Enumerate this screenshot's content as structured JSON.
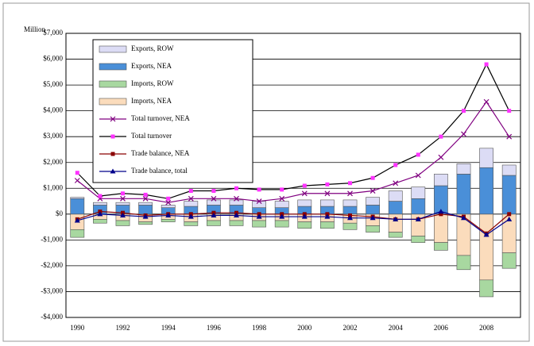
{
  "chart_data": {
    "type": "bar",
    "y_axis_label": "Million",
    "categories": [
      "1990",
      null,
      "1992",
      null,
      "1994",
      null,
      "1996",
      null,
      "1998",
      null,
      "2000",
      null,
      "2002",
      null,
      "2004",
      null,
      "2006",
      null,
      "2008",
      null
    ],
    "ylim": [
      -4000,
      7000
    ],
    "yticks": [
      {
        "value": -4000,
        "label": "-$4,000"
      },
      {
        "value": -3000,
        "label": "-$3,000"
      },
      {
        "value": -2000,
        "label": "-$2,000"
      },
      {
        "value": -1000,
        "label": "-$1,000"
      },
      {
        "value": 0,
        "label": "$0"
      },
      {
        "value": 1000,
        "label": "$1,000"
      },
      {
        "value": 2000,
        "label": "$2,000"
      },
      {
        "value": 3000,
        "label": "$3,000"
      },
      {
        "value": 4000,
        "label": "$4,000"
      },
      {
        "value": 5000,
        "label": "$5,000"
      },
      {
        "value": 6000,
        "label": "$6,000"
      },
      {
        "value": 7000,
        "label": "$7,000"
      }
    ],
    "grid": true,
    "legend": "upper left",
    "series": [
      {
        "name": "Exports, ROW",
        "type": "bar",
        "color": "#dcdcf5",
        "values": [
          50,
          100,
          100,
          100,
          100,
          200,
          200,
          200,
          250,
          250,
          250,
          250,
          250,
          300,
          400,
          450,
          450,
          400,
          750,
          400
        ]
      },
      {
        "name": "Exports, NEA",
        "type": "bar",
        "color": "#4a8fd8",
        "values": [
          600,
          350,
          350,
          350,
          250,
          300,
          350,
          350,
          250,
          250,
          300,
          300,
          300,
          350,
          500,
          600,
          1100,
          1550,
          1800,
          1500
        ]
      },
      {
        "name": "Imports, ROW",
        "type": "bar",
        "color": "#a8d8a0",
        "values": [
          -300,
          -150,
          -200,
          -100,
          -100,
          -150,
          -200,
          -200,
          -250,
          -250,
          -250,
          -250,
          -250,
          -250,
          -200,
          -250,
          -300,
          -550,
          -650,
          -600
        ]
      },
      {
        "name": "Imports, NEA",
        "type": "bar",
        "color": "#fbdcbc",
        "values": [
          -600,
          -200,
          -250,
          -300,
          -200,
          -300,
          -250,
          -250,
          -250,
          -250,
          -300,
          -300,
          -350,
          -450,
          -700,
          -850,
          -1100,
          -1600,
          -2550,
          -1500
        ]
      },
      {
        "name": "Total turnover, NEA",
        "type": "line",
        "color": "#800080",
        "marker": "x",
        "values": [
          1300,
          600,
          600,
          600,
          450,
          600,
          600,
          600,
          500,
          600,
          800,
          800,
          800,
          900,
          1200,
          1500,
          2200,
          3100,
          4350,
          3000
        ]
      },
      {
        "name": "Total turnover",
        "type": "line",
        "color": "#000000",
        "marker": "square",
        "marker_color": "#ff33ff",
        "values": [
          1600,
          700,
          800,
          750,
          600,
          900,
          900,
          1000,
          950,
          950,
          1100,
          1150,
          1200,
          1400,
          1900,
          2300,
          3000,
          4000,
          5800,
          4000
        ]
      },
      {
        "name": "Trade balance, NEA",
        "type": "line",
        "color": "#8b0000",
        "marker": "square",
        "values": [
          -200,
          100,
          50,
          -50,
          0,
          0,
          50,
          50,
          0,
          0,
          0,
          0,
          -50,
          -100,
          -200,
          -200,
          0,
          -100,
          -750,
          0
        ]
      },
      {
        "name": "Trade balance, total",
        "type": "line",
        "color": "#00008b",
        "marker": "triangle",
        "values": [
          -250,
          0,
          -50,
          -100,
          -50,
          -100,
          -50,
          -50,
          -100,
          -100,
          -100,
          -100,
          -150,
          -150,
          -200,
          -200,
          100,
          -150,
          -800,
          -200
        ]
      }
    ]
  }
}
